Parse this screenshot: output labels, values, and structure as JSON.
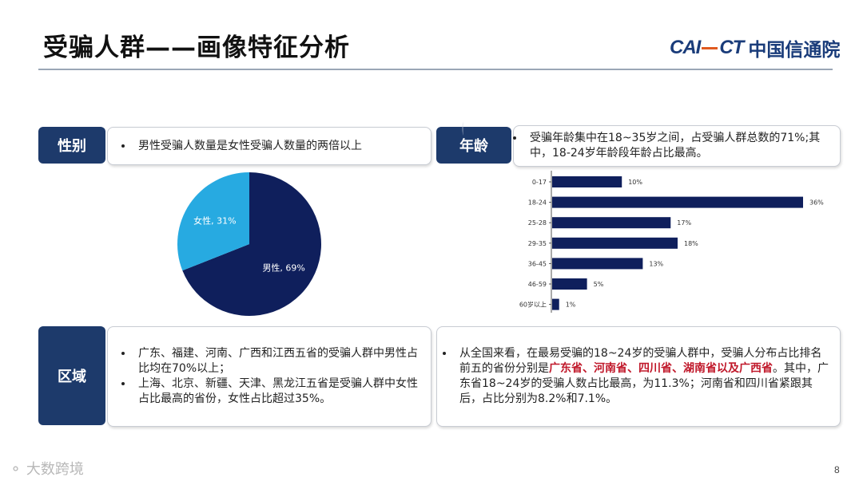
{
  "title": "受骗人群——画像特征分析",
  "logo": {
    "en_left": "CAI",
    "en_right": "CT",
    "cn": "中国信通院"
  },
  "watermark": "CAICT 中国信通院",
  "gender": {
    "tag": "性别",
    "note": "男性受骗人数量是女性受骗人数量的两倍以上"
  },
  "age": {
    "tag": "年龄",
    "note": "受骗年龄集中在18~35岁之间，占受骗人群总数的71%;其中，18-24岁年龄段年龄占比最高。"
  },
  "region": {
    "tag": "区域",
    "bullets": [
      "广东、福建、河南、广西和江西五省的受骗人群中男性占比均在70%以上；",
      "上海、北京、新疆、天津、黑龙江五省是受骗人群中女性占比最高的省份，女性占比超过35%。"
    ]
  },
  "national": {
    "part1": "从全国来看，在最易受骗的18~24岁的受骗人群中，受骗人分布占比排名前五的省份分别是",
    "highlight": "广东省、河南省、四川省、湖南省以及广西省",
    "part2": "。其中，广东省18~24岁的受骗人数占比最高，为11.3%；河南省和四川省紧跟其后，占比分别为8.2%和7.1%。"
  },
  "colors": {
    "navy": "#0f1f5c",
    "cyan": "#27aae1",
    "tag_bg": "#1d3a6b",
    "highlight": "#c0182a"
  },
  "chart_data": [
    {
      "type": "pie",
      "labels": [
        "男性",
        "女性"
      ],
      "values": [
        69,
        31
      ],
      "data_labels": [
        "男性, 69%",
        "女性, 31%"
      ],
      "colors": [
        "#0f1f5c",
        "#27aae1"
      ]
    },
    {
      "type": "bar",
      "orientation": "horizontal",
      "categories": [
        "0-17",
        "18-24",
        "25-28",
        "29-35",
        "36-45",
        "46-59",
        "60岁以上"
      ],
      "values": [
        10,
        36,
        17,
        18,
        13,
        5,
        1
      ],
      "data_labels": [
        "10%",
        "36%",
        "17%",
        "18%",
        "13%",
        "5%",
        "1%"
      ],
      "xlim": [
        0,
        36
      ],
      "grid": false,
      "color": "#0f1f5c"
    }
  ],
  "footer": {
    "brand": "大数跨境",
    "page": "8"
  }
}
